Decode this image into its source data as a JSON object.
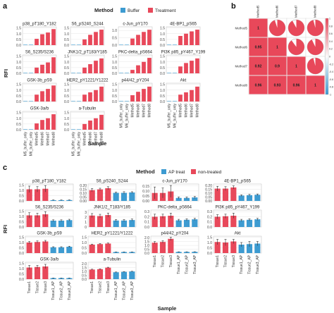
{
  "panel_letters": {
    "a": "a",
    "b": "b",
    "c": "c"
  },
  "colors": {
    "buffer": "#3d9bd1",
    "treatment": "#e8485a",
    "grid": "#e6e6e6",
    "axis": "#333333"
  },
  "chart_data": [
    {
      "panel": "a",
      "type": "bar",
      "legend_title": "Method",
      "legend": [
        "Buffer",
        "Treatment"
      ],
      "ylabel": "RFI",
      "xlabel": "Sample",
      "categories": [
        "M5_buffer_only",
        "M6_buffer_only",
        "Method5",
        "Method6",
        "Method7",
        "Method8"
      ],
      "bar_groups": [
        "buffer",
        "buffer",
        "treatment",
        "treatment",
        "treatment",
        "treatment"
      ],
      "subplots": [
        {
          "title": "p38_pT180_Y182",
          "ticks": [
            "0.0",
            "0.5",
            "1.0",
            "1.5"
          ],
          "ymax": 1.6,
          "values": [
            0.03,
            0.03,
            0.55,
            0.95,
            1.1,
            1.4
          ]
        },
        {
          "title": "S6_pS240_S244",
          "ticks": [
            "0.0",
            "0.5",
            "1.0",
            "1.5"
          ],
          "ymax": 1.6,
          "values": [
            0.02,
            0.02,
            0.5,
            0.9,
            1.15,
            1.35
          ]
        },
        {
          "title": "c-Jun_pY170",
          "ticks": [
            "0.0",
            "0.5",
            "1.0"
          ],
          "ymax": 1.25,
          "values": [
            0.02,
            0.02,
            0.45,
            0.7,
            0.9,
            1.05
          ]
        },
        {
          "title": "4E-BP1_pS65",
          "ticks": [
            "0.0",
            "0.5",
            "1.0",
            "1.5"
          ],
          "ymax": 1.6,
          "values": [
            0.02,
            0.02,
            0.8,
            1.0,
            1.2,
            1.35
          ]
        },
        {
          "title": "S6_S235/S236",
          "ticks": [
            "0.0",
            "0.5",
            "1.0",
            "1.5"
          ],
          "ymax": 1.6,
          "values": [
            0.03,
            0.03,
            0.5,
            0.75,
            0.95,
            1.4
          ]
        },
        {
          "title": "JNK1/2_pT183/Y185",
          "ticks": [
            "0.0",
            "0.5",
            "1.0",
            "1.5"
          ],
          "ymax": 1.6,
          "values": [
            0.02,
            0.02,
            0.5,
            0.8,
            1.1,
            1.3
          ]
        },
        {
          "title": "PKC-delta_pS664",
          "ticks": [
            "0.0",
            "0.5",
            "1.0",
            "1.5"
          ],
          "ymax": 1.6,
          "values": [
            0.02,
            0.02,
            0.3,
            0.7,
            1.0,
            1.35
          ]
        },
        {
          "title": "PI3K p85_pY467_Y199",
          "ticks": [
            "0.0",
            "0.5",
            "1.0",
            "1.5"
          ],
          "ymax": 1.6,
          "values": [
            0.02,
            0.02,
            0.6,
            0.9,
            1.1,
            1.3
          ]
        },
        {
          "title": "GSK-3b_pS9",
          "ticks": [
            "0.0",
            "0.5",
            "1.0",
            "1.5"
          ],
          "ymax": 1.6,
          "values": [
            0.03,
            0.03,
            0.6,
            0.9,
            1.1,
            1.4
          ]
        },
        {
          "title": "HER2_pY1221/Y1222",
          "ticks": [
            "0.0",
            "0.5",
            "1.0",
            "1.5"
          ],
          "ymax": 1.6,
          "values": [
            0.02,
            0.02,
            0.6,
            0.8,
            1.0,
            1.3
          ]
        },
        {
          "title": "p44/42_pY204",
          "ticks": [
            "0.0",
            "0.5",
            "1.0",
            "1.5"
          ],
          "ymax": 1.6,
          "values": [
            0.02,
            0.02,
            0.55,
            0.85,
            1.1,
            1.3
          ]
        },
        {
          "title": "Akt",
          "ticks": [
            "0.0",
            "0.5",
            "1.0",
            "1.5"
          ],
          "ymax": 1.6,
          "values": [
            0.02,
            0.02,
            0.6,
            0.8,
            1.0,
            1.3
          ]
        },
        {
          "title": "GSK-3a/b",
          "ticks": [
            "0.0",
            "0.5",
            "1.0",
            "1.5"
          ],
          "ymax": 1.6,
          "values": [
            0.03,
            0.03,
            0.55,
            0.85,
            1.0,
            1.35
          ]
        },
        {
          "title": "a-Tubulin",
          "ticks": [
            "0.0",
            "0.5",
            "1.0",
            "1.5"
          ],
          "ymax": 1.6,
          "values": [
            0.02,
            0.02,
            0.5,
            0.8,
            1.0,
            1.3
          ]
        }
      ]
    },
    {
      "panel": "b",
      "type": "heatmap",
      "labels": [
        "Method5",
        "Method6",
        "Method7",
        "Method8"
      ],
      "cells": [
        {
          "r": 0,
          "c": 0,
          "kind": "text",
          "text": "1"
        },
        {
          "r": 0,
          "c": 1,
          "kind": "pie",
          "value": 0.95
        },
        {
          "r": 0,
          "c": 2,
          "kind": "pie",
          "value": 0.92
        },
        {
          "r": 0,
          "c": 3,
          "kind": "pie",
          "value": 0.96
        },
        {
          "r": 1,
          "c": 0,
          "kind": "text",
          "text": "0.95"
        },
        {
          "r": 1,
          "c": 1,
          "kind": "text",
          "text": "1"
        },
        {
          "r": 1,
          "c": 2,
          "kind": "pie",
          "value": 0.9
        },
        {
          "r": 1,
          "c": 3,
          "kind": "pie",
          "value": 0.93
        },
        {
          "r": 2,
          "c": 0,
          "kind": "text",
          "text": "0.92"
        },
        {
          "r": 2,
          "c": 1,
          "kind": "text",
          "text": "0.9"
        },
        {
          "r": 2,
          "c": 2,
          "kind": "text",
          "text": "1"
        },
        {
          "r": 2,
          "c": 3,
          "kind": "pie",
          "value": 0.96
        },
        {
          "r": 3,
          "c": 0,
          "kind": "text",
          "text": "0.96"
        },
        {
          "r": 3,
          "c": 1,
          "kind": "text",
          "text": "0.93"
        },
        {
          "r": 3,
          "c": 2,
          "kind": "text",
          "text": "0.96"
        },
        {
          "r": 3,
          "c": 3,
          "kind": "text",
          "text": "1"
        }
      ],
      "scale_ticks": [
        "1",
        "0.8",
        "0.6",
        "0.4",
        "0.2",
        "0",
        "-0.2",
        "-0.4",
        "-0.6",
        "-0.8",
        "-1"
      ]
    },
    {
      "panel": "c",
      "type": "bar",
      "legend_title": "Method",
      "legend": [
        "AP treat",
        "non-treated"
      ],
      "ylabel": "RFI",
      "xlabel": "Sample",
      "categories": [
        "Tissue1",
        "Tissue2",
        "Tissue3",
        "Tissue1_AP",
        "Tissue2_AP",
        "Tissue3_AP"
      ],
      "bar_groups": [
        "treatment",
        "treatment",
        "treatment",
        "buffer",
        "buffer",
        "buffer"
      ],
      "subplots": [
        {
          "title": "p38_pT180_Y182",
          "ticks": [
            "0.0",
            "0.5",
            "1.0",
            "1.5"
          ],
          "ymax": 1.6,
          "values": [
            1.1,
            1.1,
            1.15,
            0.07,
            0.07,
            0.08
          ],
          "errors": [
            0.3,
            0.25,
            0.3,
            0.02,
            0.02,
            0.02
          ]
        },
        {
          "title": "S6_pS240_S244",
          "ticks": [
            "0.00",
            "0.05",
            "0.10",
            "0.15",
            "0.20"
          ],
          "ymax": 0.22,
          "values": [
            0.14,
            0.15,
            0.165,
            0.105,
            0.105,
            0.11
          ],
          "errors": [
            0.02,
            0.015,
            0.02,
            0.01,
            0.015,
            0.01
          ]
        },
        {
          "title": "c-Jun_pY170",
          "ticks": [
            "0.00",
            "0.05",
            "0.10",
            "0.15"
          ],
          "ymax": 0.17,
          "values": [
            0.08,
            0.08,
            0.095,
            0.03,
            0.03,
            0.035
          ],
          "errors": [
            0.06,
            0.05,
            0.06,
            0.01,
            0.01,
            0.01
          ]
        },
        {
          "title": "4E-BP1_pS65",
          "ticks": [
            "0.00",
            "0.05",
            "0.10",
            "0.15",
            "0.20"
          ],
          "ymax": 0.22,
          "values": [
            0.16,
            0.16,
            0.175,
            0.07,
            0.075,
            0.08
          ],
          "errors": [
            0.03,
            0.025,
            0.02,
            0.01,
            0.01,
            0.01
          ]
        },
        {
          "title": "S6_S235/S236",
          "ticks": [
            "0.0",
            "0.5",
            "1.0",
            "1.5"
          ],
          "ymax": 1.6,
          "values": [
            1.1,
            1.1,
            1.2,
            0.6,
            0.6,
            0.65
          ],
          "errors": [
            0.25,
            0.2,
            0.25,
            0.08,
            0.08,
            0.08
          ]
        },
        {
          "title": "JNK1/2_T183/Y185",
          "ticks": [
            "0",
            "1",
            "2",
            "3"
          ],
          "ymax": 3.4,
          "values": [
            2.3,
            2.2,
            2.4,
            1.3,
            1.3,
            1.4
          ],
          "errors": [
            0.4,
            0.35,
            0.4,
            0.2,
            0.2,
            0.2
          ]
        },
        {
          "title": "PKC-delta_pS664",
          "ticks": [
            "0.0",
            "0.1",
            "0.2",
            "0.3"
          ],
          "ymax": 0.33,
          "values": [
            0.2,
            0.21,
            0.22,
            0.13,
            0.14,
            0.15
          ],
          "errors": [
            0.05,
            0.04,
            0.05,
            0.02,
            0.02,
            0.02
          ]
        },
        {
          "title": "PI3K p85_pY467_Y199",
          "ticks": [
            "0.0",
            "0.1",
            "0.2",
            "0.3"
          ],
          "ymax": 0.33,
          "values": [
            0.2,
            0.21,
            0.22,
            0.13,
            0.14,
            0.15
          ],
          "errors": [
            0.04,
            0.04,
            0.05,
            0.02,
            0.02,
            0.02
          ]
        },
        {
          "title": "GSK-3b_pS9",
          "ticks": [
            "0.0",
            "0.5",
            "1.0",
            "1.5"
          ],
          "ymax": 1.6,
          "values": [
            1.0,
            1.05,
            1.1,
            0.55,
            0.55,
            0.6
          ],
          "errors": [
            0.1,
            0.1,
            0.1,
            0.05,
            0.05,
            0.05
          ]
        },
        {
          "title": "HER2_pY1221/Y1222",
          "ticks": [
            "0.0",
            "0.5",
            "1.0",
            "1.5"
          ],
          "ymax": 1.6,
          "values": [
            0.8,
            0.85,
            0.9,
            0.1,
            0.1,
            0.1
          ],
          "errors": [
            0.05,
            0.05,
            0.05,
            0.01,
            0.01,
            0.01
          ]
        },
        {
          "title": "p44/42_pY204",
          "ticks": [
            "0.0",
            "0.5",
            "1.0",
            "1.5",
            "2.0"
          ],
          "ymax": 2.2,
          "values": [
            1.35,
            1.45,
            1.85,
            0.15,
            0.15,
            0.16
          ],
          "errors": [
            0.15,
            0.15,
            0.2,
            0.02,
            0.02,
            0.02
          ]
        },
        {
          "title": "Akt",
          "ticks": [
            "0.0",
            "0.5",
            "1.0",
            "1.5"
          ],
          "ymax": 1.6,
          "values": [
            1.05,
            1.0,
            1.1,
            0.8,
            0.85,
            0.9
          ],
          "errors": [
            0.25,
            0.3,
            0.2,
            0.2,
            0.25,
            0.2
          ]
        },
        {
          "title": "GSK-3a/b",
          "ticks": [
            "0.0",
            "0.5",
            "1.0",
            "1.5"
          ],
          "ymax": 1.6,
          "values": [
            1.1,
            1.15,
            1.2,
            0.1,
            0.1,
            0.1
          ],
          "errors": [
            0.2,
            0.15,
            0.2,
            0.01,
            0.01,
            0.01
          ]
        },
        {
          "title": "a-Tubulin",
          "ticks": [
            "0.0",
            "0.5",
            "1.0",
            "1.5",
            "2.0"
          ],
          "ymax": 2.2,
          "values": [
            1.25,
            1.3,
            1.5,
            0.9,
            0.95,
            1.0
          ],
          "errors": [
            0.05,
            0.05,
            0.05,
            0.03,
            0.03,
            0.03
          ]
        }
      ]
    }
  ]
}
